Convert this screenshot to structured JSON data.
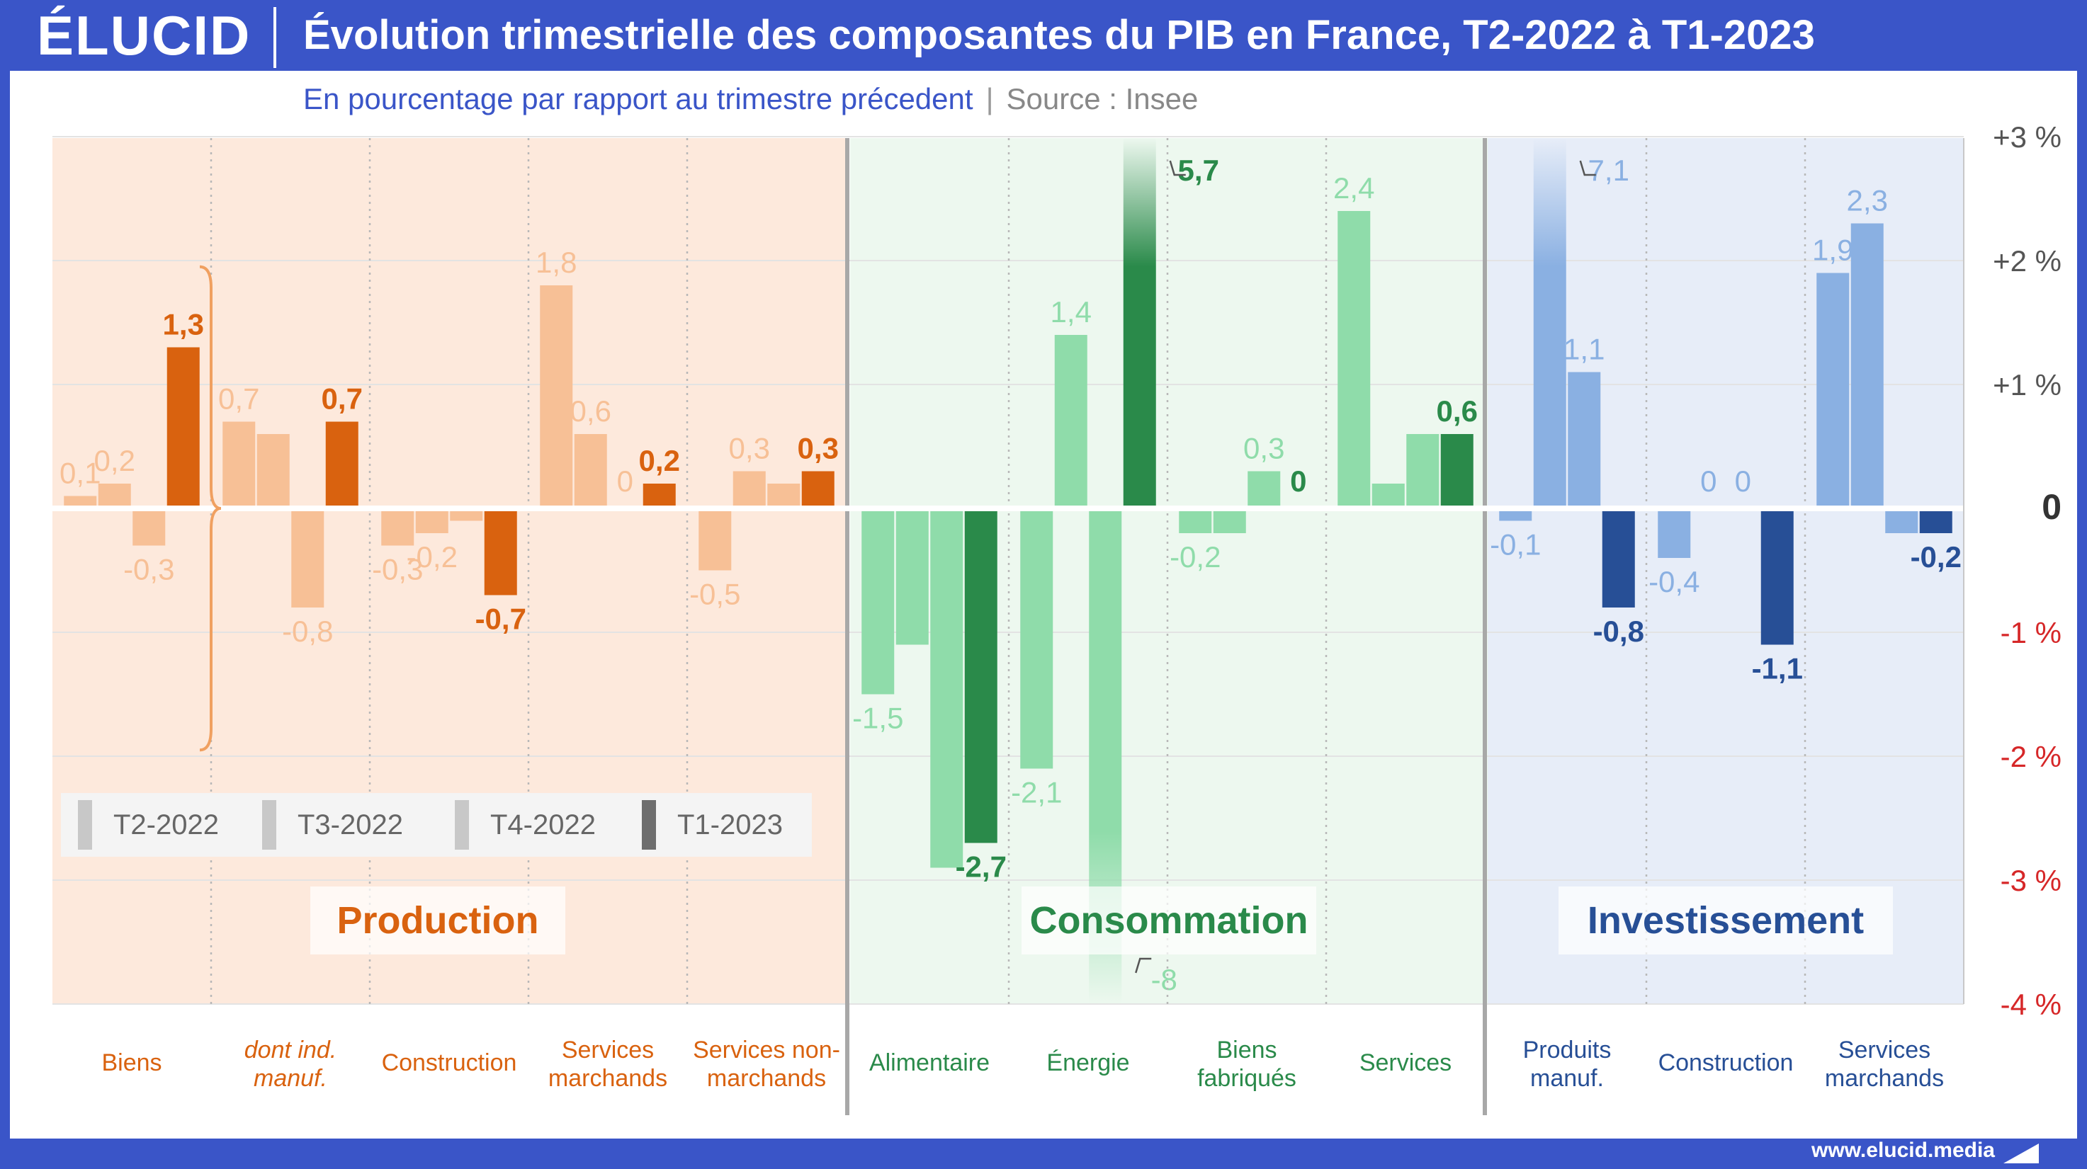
{
  "header": {
    "logo": "ÉLUCID",
    "title": "Évolution trimestrielle des composantes du PIB en France, T2-2022 à T1-2023"
  },
  "subtitle": {
    "main": "En pourcentage par rapport au trimestre précedent",
    "separator": "|",
    "source": "Source : Insee"
  },
  "footer": {
    "url": "www.elucid.media"
  },
  "legend": {
    "items": [
      "T2-2022",
      "T3-2022",
      "T4-2022",
      "T1-2023"
    ],
    "colors": [
      "#c8c8c8",
      "#c8c8c8",
      "#c8c8c8",
      "#6e6e6e"
    ]
  },
  "chart_data": {
    "type": "bar",
    "y_axis": {
      "range": [
        -4,
        3
      ],
      "ticks": [
        3,
        2,
        1,
        0,
        -1,
        -2,
        -3,
        -4
      ],
      "tick_labels": [
        "+3 %",
        "+2 %",
        "+1 %",
        "0",
        "-1 %",
        "-2 %",
        "-3 %",
        "-4 %"
      ],
      "tick_colors": [
        "#555555",
        "#555555",
        "#555555",
        "#333333",
        "#d62728",
        "#d62728",
        "#d62728",
        "#d62728"
      ]
    },
    "grid": true,
    "series_names": [
      "T2-2022",
      "T3-2022",
      "T4-2022",
      "T1-2023"
    ],
    "groups": [
      {
        "name": "Production",
        "bg_color": "#fde9dc",
        "label_color": "#d9620f",
        "light_color": "#f7c096",
        "dark_color": "#d9620f",
        "categories": [
          {
            "label": [
              "Biens"
            ],
            "italic": false,
            "values": [
              0.1,
              0.2,
              -0.3,
              1.3
            ],
            "value_labels": [
              "0,1",
              "0,2",
              "-0,3",
              "1,3"
            ]
          },
          {
            "label": [
              "dont ind.",
              "manuf."
            ],
            "italic": true,
            "values": [
              0.7,
              0.6,
              -0.8,
              0.7
            ],
            "value_labels": [
              "0,7",
              "",
              "-0,8",
              "0,7"
            ]
          },
          {
            "label": [
              "Construction"
            ],
            "italic": false,
            "values": [
              -0.3,
              -0.2,
              -0.1,
              -0.7
            ],
            "value_labels": [
              "-0,3",
              "-0,2",
              "",
              "-0,7"
            ]
          },
          {
            "label": [
              "Services",
              "marchands"
            ],
            "italic": false,
            "values": [
              1.8,
              0.6,
              0.0,
              0.2
            ],
            "value_labels": [
              "1,8",
              "0,6",
              "0",
              "0,2"
            ]
          },
          {
            "label": [
              "Services non-",
              "marchands"
            ],
            "italic": false,
            "values": [
              -0.5,
              0.3,
              0.2,
              0.3
            ],
            "value_labels": [
              "-0,5",
              "0,3",
              "",
              "0,3"
            ]
          }
        ]
      },
      {
        "name": "Consommation",
        "bg_color": "#edf8ef",
        "label_color": "#2a8a4a",
        "light_color": "#8fdcaa",
        "dark_color": "#2a8a4a",
        "categories": [
          {
            "label": [
              "Alimentaire"
            ],
            "italic": false,
            "values": [
              -1.5,
              -1.1,
              -2.9,
              -2.7
            ],
            "value_labels": [
              "-1,5",
              "",
              "",
              "-2,7"
            ]
          },
          {
            "label": [
              "Énergie"
            ],
            "italic": false,
            "values": [
              -2.1,
              1.4,
              -8.0,
              5.7
            ],
            "value_labels": [
              "-2,1",
              "1,4",
              "-8",
              "5,7"
            ]
          },
          {
            "label": [
              "Biens",
              "fabriqués"
            ],
            "italic": false,
            "values": [
              -0.2,
              -0.2,
              0.3,
              0.0
            ],
            "value_labels": [
              "-0,2",
              "",
              "0,3",
              "0"
            ]
          },
          {
            "label": [
              "Services"
            ],
            "italic": false,
            "values": [
              2.4,
              0.2,
              0.6,
              0.6
            ],
            "value_labels": [
              "2,4",
              "",
              "",
              "0,6"
            ]
          }
        ]
      },
      {
        "name": "Investissement",
        "bg_color": "#e7edf8",
        "label_color": "#274f96",
        "light_color": "#8ab0e2",
        "dark_color": "#274f96",
        "categories": [
          {
            "label": [
              "Produits",
              "manuf."
            ],
            "italic": false,
            "values": [
              -0.1,
              7.1,
              1.1,
              -0.8
            ],
            "value_labels": [
              "-0,1",
              "7,1",
              "1,1",
              "-0,8"
            ]
          },
          {
            "label": [
              "Construction"
            ],
            "italic": false,
            "values": [
              -0.4,
              0.0,
              0.0,
              -1.1
            ],
            "value_labels": [
              "-0,4",
              "0",
              "0",
              "-1,1"
            ]
          },
          {
            "label": [
              "Services",
              "marchands"
            ],
            "italic": false,
            "values": [
              1.9,
              2.3,
              -0.2,
              -0.2
            ],
            "value_labels": [
              "1,9",
              "2,3",
              "",
              "-0,2"
            ]
          }
        ]
      }
    ]
  }
}
